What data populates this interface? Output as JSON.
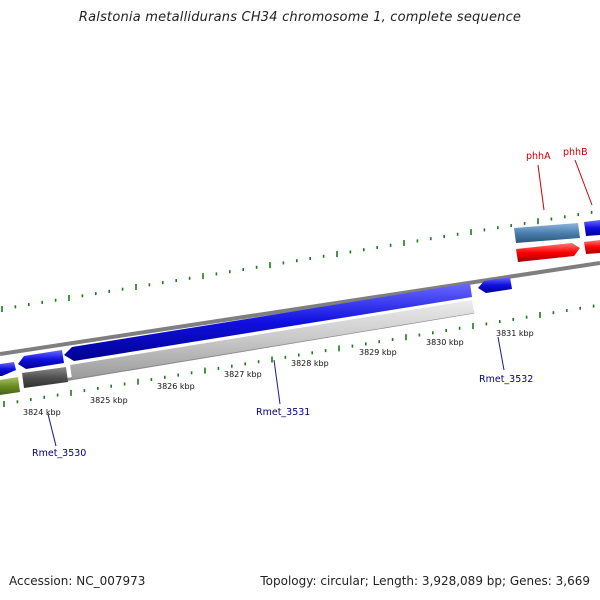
{
  "title": "Ralstonia metallidurans CH34 chromosome 1, complete sequence",
  "footer": {
    "accession": "Accession: NC_007973",
    "stats": "Topology: circular; Length: 3,928,089 bp; Genes: 3,669"
  },
  "axis": {
    "tick_labels": [
      "3824 kbp",
      "3825 kbp",
      "3826 kbp",
      "3827 kbp",
      "3828 kbp",
      "3829 kbp",
      "3830 kbp",
      "3831 kbp"
    ]
  },
  "gene_labels": [
    {
      "text": "Rmet_3530",
      "color": "#000080"
    },
    {
      "text": "Rmet_3531",
      "color": "#000080"
    },
    {
      "text": "Rmet_3532",
      "color": "#000080"
    },
    {
      "text": "phhA",
      "color": "#cc0000"
    },
    {
      "text": "phhB",
      "color": "#cc0000"
    }
  ],
  "colors": {
    "cds_blue": "#1010e0",
    "cds_red": "#ff0000",
    "steel_blue": "#4a7fb0",
    "olive": "#6b8e23",
    "dark_gray": "#505050",
    "light_gray": "#c8c8c8",
    "backbone": "#808080",
    "tick_green": "#1a7a1a"
  }
}
